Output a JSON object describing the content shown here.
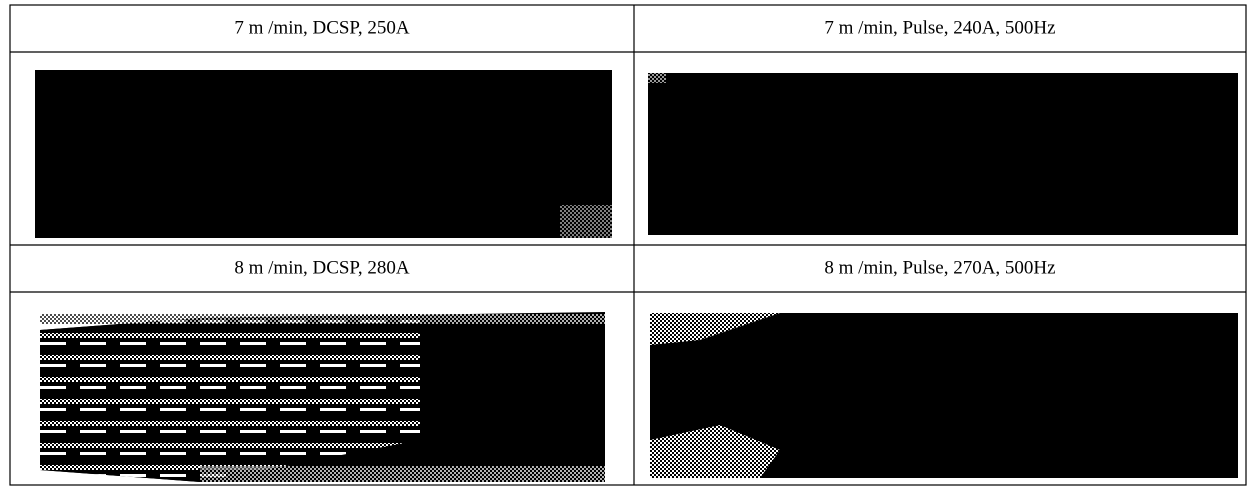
{
  "table": {
    "rows": [
      [
        "7 m /min, DCSP, 250A",
        "7 m /min, Pulse, 240A, 500Hz"
      ],
      [
        "8 m /min, DCSP, 280A",
        "8 m /min, Pulse, 270A, 500Hz"
      ]
    ]
  }
}
